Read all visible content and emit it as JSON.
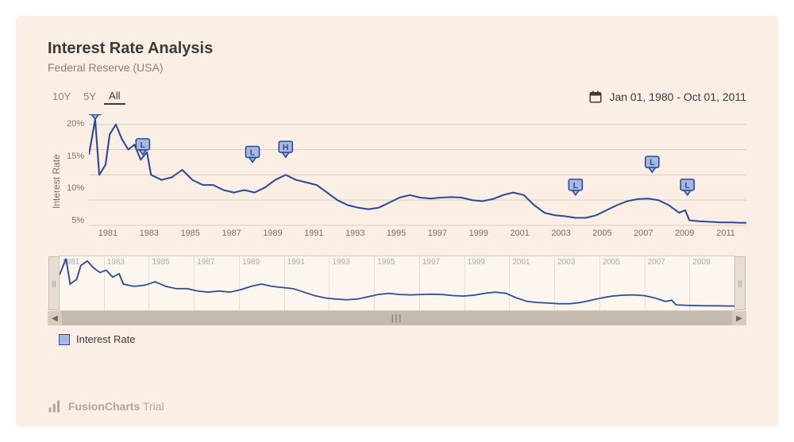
{
  "title": "Interest Rate Analysis",
  "subtitle": "Federal Reserve (USA)",
  "range_buttons": [
    "10Y",
    "5Y",
    "All"
  ],
  "range_active_index": 2,
  "date_range_label": "Jan 01, 1980 - Oct 01, 2011",
  "y_axis_label": "Interest Rate",
  "y_ticks": [
    "20%",
    "15%",
    "10%",
    "5%"
  ],
  "x_ticks_main": [
    "1981",
    "1983",
    "1985",
    "1987",
    "1989",
    "1991",
    "1993",
    "1995",
    "1997",
    "1999",
    "2001",
    "2003",
    "2005",
    "2007",
    "2009",
    "2011"
  ],
  "x_ticks_nav": [
    "1981",
    "1983",
    "1985",
    "1987",
    "1989",
    "1991",
    "1993",
    "1995",
    "1997",
    "1999",
    "2001",
    "2003",
    "2005",
    "2007",
    "2009"
  ],
  "legend_label": "Interest Rate",
  "watermark_brand": "FusionCharts",
  "watermark_suffix": "Trial",
  "chart": {
    "type": "line",
    "x_domain": [
      1980,
      2011.75
    ],
    "y_domain": [
      0,
      22
    ],
    "line_color": "#2a4a9a",
    "line_width": 2,
    "grid_color": "#d8ccc0",
    "background_color": "#fbeee4",
    "plot_background": "#fbeee4",
    "marker_fill": "#a8b8e0",
    "marker_stroke": "#2a4a9a",
    "marker_text_color": "#2a4a9a",
    "title_fontsize": 20,
    "subtitle_fontsize": 14,
    "axis_fontsize": 11,
    "markers": [
      {
        "x": 1980.3,
        "y": 21,
        "label": "H"
      },
      {
        "x": 1982.6,
        "y": 14,
        "label": "L"
      },
      {
        "x": 1987.9,
        "y": 12.5,
        "label": "L"
      },
      {
        "x": 1989.5,
        "y": 13.5,
        "label": "H"
      },
      {
        "x": 2003.5,
        "y": 6,
        "label": "L"
      },
      {
        "x": 2007.2,
        "y": 10.5,
        "label": "L"
      },
      {
        "x": 2008.9,
        "y": 6,
        "label": "L"
      }
    ],
    "series": [
      {
        "x": 1980.0,
        "y": 14
      },
      {
        "x": 1980.3,
        "y": 21
      },
      {
        "x": 1980.5,
        "y": 10
      },
      {
        "x": 1980.8,
        "y": 12
      },
      {
        "x": 1981.0,
        "y": 18
      },
      {
        "x": 1981.3,
        "y": 20
      },
      {
        "x": 1981.6,
        "y": 17
      },
      {
        "x": 1981.9,
        "y": 15
      },
      {
        "x": 1982.2,
        "y": 16
      },
      {
        "x": 1982.5,
        "y": 13
      },
      {
        "x": 1982.8,
        "y": 14.5
      },
      {
        "x": 1983.0,
        "y": 10
      },
      {
        "x": 1983.5,
        "y": 9
      },
      {
        "x": 1984.0,
        "y": 9.5
      },
      {
        "x": 1984.5,
        "y": 11
      },
      {
        "x": 1985.0,
        "y": 9
      },
      {
        "x": 1985.5,
        "y": 8
      },
      {
        "x": 1986.0,
        "y": 8
      },
      {
        "x": 1986.5,
        "y": 7
      },
      {
        "x": 1987.0,
        "y": 6.5
      },
      {
        "x": 1987.5,
        "y": 7
      },
      {
        "x": 1988.0,
        "y": 6.5
      },
      {
        "x": 1988.5,
        "y": 7.5
      },
      {
        "x": 1989.0,
        "y": 9
      },
      {
        "x": 1989.5,
        "y": 10
      },
      {
        "x": 1990.0,
        "y": 9
      },
      {
        "x": 1990.5,
        "y": 8.5
      },
      {
        "x": 1991.0,
        "y": 8
      },
      {
        "x": 1991.5,
        "y": 6.5
      },
      {
        "x": 1992.0,
        "y": 5
      },
      {
        "x": 1992.5,
        "y": 4
      },
      {
        "x": 1993.0,
        "y": 3.5
      },
      {
        "x": 1993.5,
        "y": 3.2
      },
      {
        "x": 1994.0,
        "y": 3.5
      },
      {
        "x": 1994.5,
        "y": 4.5
      },
      {
        "x": 1995.0,
        "y": 5.5
      },
      {
        "x": 1995.5,
        "y": 6
      },
      {
        "x": 1996.0,
        "y": 5.5
      },
      {
        "x": 1996.5,
        "y": 5.3
      },
      {
        "x": 1997.0,
        "y": 5.5
      },
      {
        "x": 1997.5,
        "y": 5.6
      },
      {
        "x": 1998.0,
        "y": 5.5
      },
      {
        "x": 1998.5,
        "y": 5
      },
      {
        "x": 1999.0,
        "y": 4.8
      },
      {
        "x": 1999.5,
        "y": 5.2
      },
      {
        "x": 2000.0,
        "y": 6
      },
      {
        "x": 2000.5,
        "y": 6.5
      },
      {
        "x": 2001.0,
        "y": 6
      },
      {
        "x": 2001.5,
        "y": 4
      },
      {
        "x": 2002.0,
        "y": 2.5
      },
      {
        "x": 2002.5,
        "y": 2
      },
      {
        "x": 2003.0,
        "y": 1.8
      },
      {
        "x": 2003.5,
        "y": 1.5
      },
      {
        "x": 2004.0,
        "y": 1.5
      },
      {
        "x": 2004.5,
        "y": 2
      },
      {
        "x": 2005.0,
        "y": 3
      },
      {
        "x": 2005.5,
        "y": 4
      },
      {
        "x": 2006.0,
        "y": 4.8
      },
      {
        "x": 2006.5,
        "y": 5.2
      },
      {
        "x": 2007.0,
        "y": 5.3
      },
      {
        "x": 2007.5,
        "y": 5
      },
      {
        "x": 2008.0,
        "y": 4
      },
      {
        "x": 2008.5,
        "y": 2.5
      },
      {
        "x": 2008.8,
        "y": 3
      },
      {
        "x": 2009.0,
        "y": 1
      },
      {
        "x": 2009.5,
        "y": 0.8
      },
      {
        "x": 2010.0,
        "y": 0.7
      },
      {
        "x": 2010.5,
        "y": 0.6
      },
      {
        "x": 2011.0,
        "y": 0.6
      },
      {
        "x": 2011.5,
        "y": 0.5
      },
      {
        "x": 2011.75,
        "y": 0.5
      }
    ]
  },
  "navigator": {
    "height": 70,
    "line_color": "#2a4a9a",
    "grid_color": "#e6dcd0",
    "handle_color": "#e8ddd2",
    "scrollbar_bg": "#c4bab0",
    "scrollbar_arrow_bg": "#d8ccc0"
  }
}
